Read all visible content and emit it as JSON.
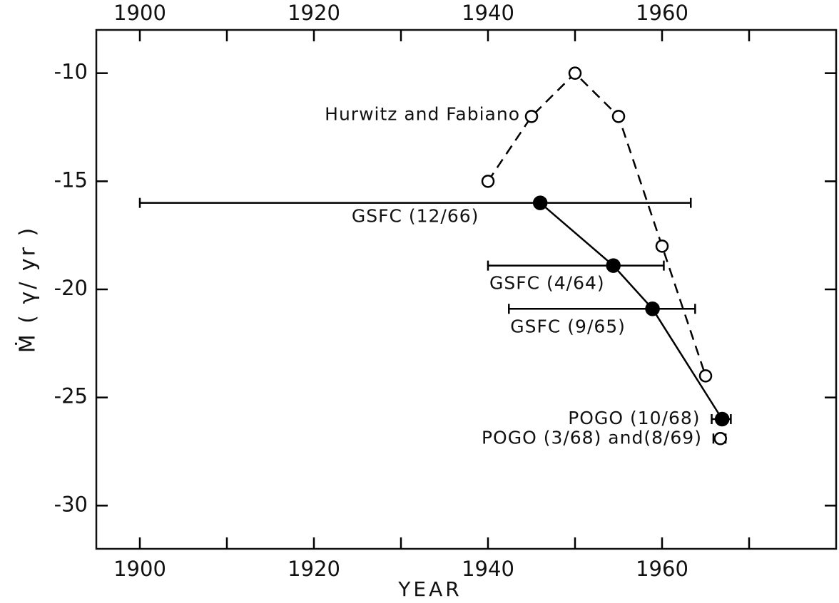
{
  "chart_data": {
    "type": "line",
    "x_label": "YEAR",
    "y_label": "Ṁ  ( γ/ yr )",
    "xlim": [
      1895,
      1980
    ],
    "xticks": [
      1900,
      1920,
      1940,
      1960
    ],
    "xminor_ticks": [
      1910,
      1930,
      1950,
      1970
    ],
    "ylim": [
      -32,
      -8
    ],
    "yticks": [
      -10,
      -15,
      -20,
      -25,
      -30
    ],
    "color": "#000000",
    "series": [
      {
        "name": "Hurwitz and Fabiano",
        "line": "dashed",
        "marker": "open",
        "x": [
          1940,
          1945,
          1950,
          1955,
          1960,
          1965
        ],
        "values": [
          -15,
          -12,
          -10,
          -12,
          -18,
          -24
        ]
      },
      {
        "line": "solid",
        "marker": "filled",
        "labels": [
          "GSFC (12/66)",
          "GSFC (4/64)",
          "GSFC (9/65)",
          "POGO (10/68)"
        ],
        "x": [
          1946,
          1954.4,
          1958.9,
          1966.9
        ],
        "values": [
          -16,
          -18.9,
          -20.9,
          -26
        ],
        "x_low": [
          1900,
          1940,
          1942.4,
          1965.7
        ],
        "x_high": [
          1963.3,
          1960.2,
          1963.8,
          1967.9
        ]
      },
      {
        "line": "none",
        "marker": "open",
        "labels": [
          "POGO (3/68) and(8/69)"
        ],
        "x": [
          1966.7
        ],
        "values": [
          -26.9
        ],
        "x_low": [
          1965.9
        ],
        "x_high": [
          1967.3
        ]
      }
    ]
  }
}
